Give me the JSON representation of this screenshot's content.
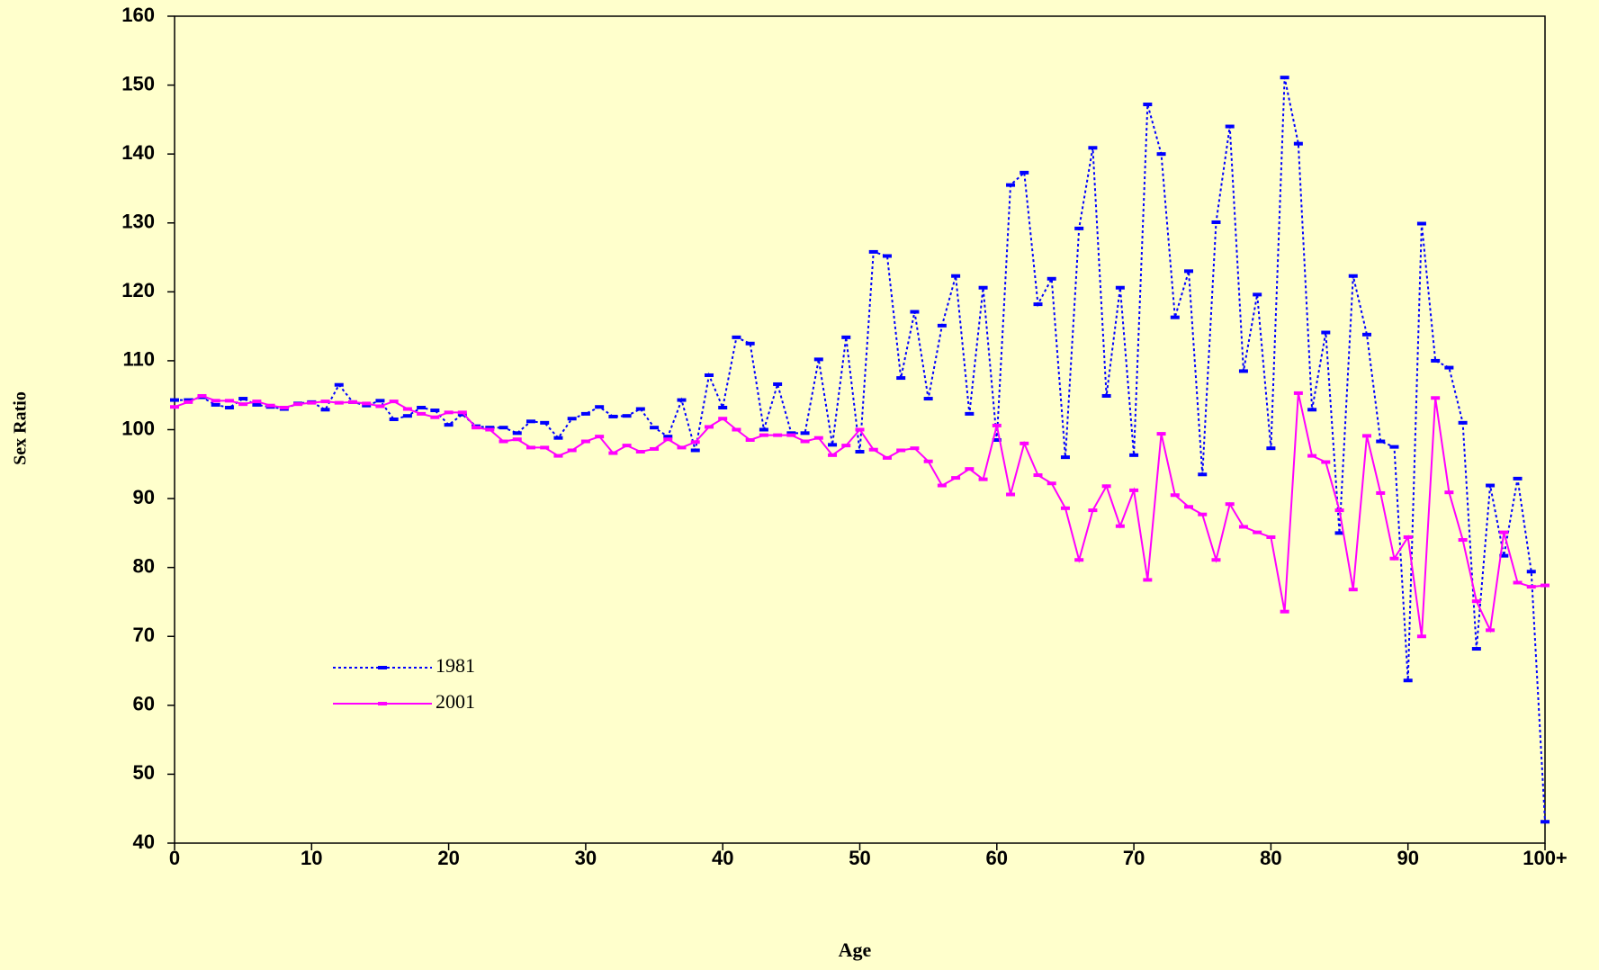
{
  "chart_data": {
    "type": "line",
    "x_label": "Age",
    "y_label": "Sex Ratio",
    "x": [
      0,
      1,
      2,
      3,
      4,
      5,
      6,
      7,
      8,
      9,
      10,
      11,
      12,
      13,
      14,
      15,
      16,
      17,
      18,
      19,
      20,
      21,
      22,
      23,
      24,
      25,
      26,
      27,
      28,
      29,
      30,
      31,
      32,
      33,
      34,
      35,
      36,
      37,
      38,
      39,
      40,
      41,
      42,
      43,
      44,
      45,
      46,
      47,
      48,
      49,
      50,
      51,
      52,
      53,
      54,
      55,
      56,
      57,
      58,
      59,
      60,
      61,
      62,
      63,
      64,
      65,
      66,
      67,
      68,
      69,
      70,
      71,
      72,
      73,
      74,
      75,
      76,
      77,
      78,
      79,
      80,
      81,
      82,
      83,
      84,
      85,
      86,
      87,
      88,
      89,
      90,
      91,
      92,
      93,
      94,
      95,
      96,
      97,
      98,
      99,
      100
    ],
    "series": [
      {
        "name": "1981",
        "color": "#0000ff",
        "dashed": true,
        "values": [
          104.3,
          104.3,
          104.7,
          103.6,
          103.2,
          104.5,
          103.6,
          103.3,
          103.0,
          103.8,
          104.0,
          102.9,
          106.5,
          104.0,
          103.5,
          104.2,
          101.5,
          102.0,
          103.2,
          102.8,
          100.7,
          102.2,
          100.5,
          100.3,
          100.3,
          99.5,
          101.2,
          101.0,
          98.8,
          101.6,
          102.3,
          103.3,
          101.9,
          102.0,
          103.0,
          100.3,
          99.0,
          104.3,
          97.0,
          107.9,
          103.2,
          113.4,
          112.5,
          100.0,
          106.6,
          99.5,
          99.5,
          110.2,
          97.8,
          113.4,
          96.8,
          125.8,
          125.2,
          107.5,
          117.1,
          104.5,
          115.1,
          122.3,
          102.3,
          120.6,
          98.5,
          135.5,
          137.3,
          118.2,
          121.9,
          96.0,
          129.2,
          140.9,
          104.9,
          120.6,
          96.3,
          147.2,
          140.0,
          116.3,
          123.0,
          93.5,
          130.1,
          144.0,
          108.5,
          119.6,
          97.3,
          151.1,
          141.5,
          102.9,
          114.1,
          85.0,
          122.3,
          113.8,
          98.3,
          97.5,
          63.6,
          129.9,
          110.0,
          109.0,
          101.0,
          68.2,
          91.9,
          81.7,
          92.9,
          79.4,
          43.1
        ]
      },
      {
        "name": "2001",
        "color": "#ff00ff",
        "dashed": false,
        "values": [
          103.3,
          104.0,
          104.9,
          104.2,
          104.2,
          103.7,
          104.1,
          103.5,
          103.2,
          103.7,
          103.9,
          104.1,
          103.9,
          104.0,
          103.8,
          103.4,
          104.1,
          103.0,
          102.3,
          101.8,
          102.5,
          102.5,
          100.3,
          100.0,
          98.3,
          98.6,
          97.4,
          97.4,
          96.2,
          97.0,
          98.3,
          99.0,
          96.6,
          97.7,
          96.8,
          97.2,
          98.6,
          97.4,
          98.2,
          100.4,
          101.6,
          100.0,
          98.5,
          99.2,
          99.2,
          99.2,
          98.3,
          98.8,
          96.3,
          97.7,
          100.0,
          97.1,
          95.9,
          97.0,
          97.3,
          95.4,
          91.9,
          93.0,
          94.3,
          92.8,
          100.6,
          90.6,
          98.0,
          93.4,
          92.2,
          88.6,
          81.1,
          88.3,
          91.8,
          86.0,
          91.2,
          78.2,
          99.4,
          90.5,
          88.8,
          87.7,
          81.1,
          89.2,
          85.9,
          85.1,
          84.4,
          73.6,
          105.3,
          96.2,
          95.3,
          88.3,
          76.8,
          99.1,
          90.8,
          81.3,
          84.4,
          70.0,
          104.6,
          90.9,
          84.0,
          75.1,
          70.9,
          85.1,
          77.8,
          77.2,
          77.4
        ]
      }
    ],
    "xlim": [
      0,
      100
    ],
    "xticks": [
      0,
      10,
      20,
      30,
      40,
      50,
      60,
      70,
      80,
      90,
      {
        "value": 100,
        "label": "100+"
      }
    ],
    "ylim": [
      40,
      160
    ],
    "yticks": [
      40,
      50,
      60,
      70,
      80,
      90,
      100,
      110,
      120,
      130,
      140,
      150,
      160
    ],
    "grid": false,
    "legend": "lower left"
  }
}
